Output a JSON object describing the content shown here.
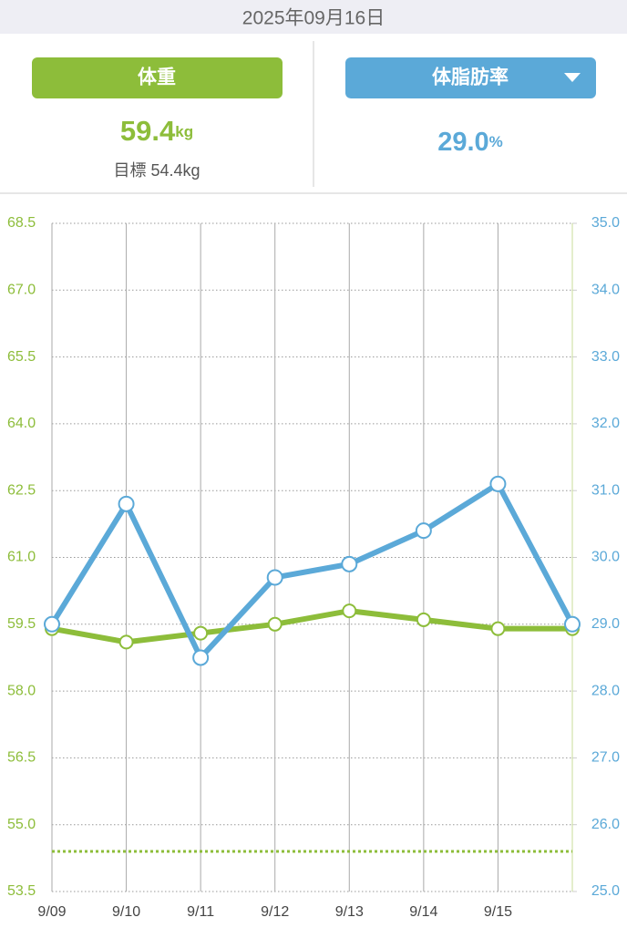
{
  "header": {
    "date": "2025年09月16日"
  },
  "cards": [
    {
      "value": "59.4",
      "unit": "kg",
      "target": "目標 54.4kg"
    },
    {
      "value": "29.0",
      "unit": "%"
    }
  ],
  "chart_data": {
    "type": "line",
    "categories": [
      "9/09",
      "9/10",
      "9/11",
      "9/12",
      "9/13",
      "9/14",
      "9/15",
      null
    ],
    "series": [
      {
        "name": "体重",
        "color": "#8dbd3a",
        "values": [
          59.4,
          59.1,
          59.3,
          59.5,
          59.8,
          59.6,
          59.4,
          59.4
        ]
      },
      {
        "name": "体脂肪率",
        "color": "#5ba9d8",
        "axis": "y2",
        "values": [
          29.0,
          30.8,
          28.5,
          29.7,
          29.9,
          30.4,
          31.1,
          29.0
        ]
      }
    ],
    "target": 54.4,
    "ylim": [
      53.5,
      68.5
    ],
    "yticks": [
      53.5,
      {
        "value": 55,
        "label": "55.0"
      },
      56.5,
      {
        "value": 58,
        "label": "58.0"
      },
      59.5,
      {
        "value": 61,
        "label": "61.0"
      },
      62.5,
      {
        "value": 64,
        "label": "64.0"
      },
      65.5,
      {
        "value": 67,
        "label": "67.0"
      },
      68.5
    ],
    "y2lim": [
      25,
      35
    ],
    "y2ticks": [
      {
        "value": 25,
        "label": "25.0"
      },
      {
        "value": 26,
        "label": "26.0"
      },
      {
        "value": 27,
        "label": "27.0"
      },
      {
        "value": 28,
        "label": "28.0"
      },
      {
        "value": 29,
        "label": "29.0"
      },
      {
        "value": 30,
        "label": "30.0"
      },
      {
        "value": 31,
        "label": "31.0"
      },
      {
        "value": 32,
        "label": "32.0"
      },
      {
        "value": 33,
        "label": "33.0"
      },
      {
        "value": 34,
        "label": "34.0"
      },
      {
        "value": 35,
        "label": "35.0"
      }
    ],
    "grid": true
  }
}
